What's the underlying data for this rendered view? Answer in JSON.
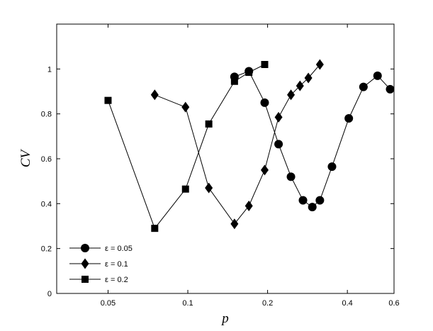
{
  "chart_data": {
    "type": "line",
    "title": "",
    "xlabel": "p",
    "ylabel": "CV",
    "x_scale": "log",
    "xlim": [
      0.032,
      0.6
    ],
    "ylim": [
      0,
      1.2
    ],
    "x_ticks": [
      0.05,
      0.1,
      0.2,
      0.4,
      0.6
    ],
    "x_tick_labels": [
      "0.05",
      "0.1",
      "0.2",
      "0.4",
      "0.6"
    ],
    "y_ticks": [
      0,
      0.2,
      0.4,
      0.6,
      0.8,
      1
    ],
    "y_tick_labels": [
      "0",
      "0.2",
      "0.4",
      "0.6",
      "0.8",
      "1"
    ],
    "grid": false,
    "legend_position": "bottom-left",
    "series": [
      {
        "name": "ε = 0.05",
        "marker": "circle",
        "points": [
          [
            0.15,
            0.965
          ],
          [
            0.17,
            0.99
          ],
          [
            0.195,
            0.85
          ],
          [
            0.22,
            0.665
          ],
          [
            0.245,
            0.52
          ],
          [
            0.272,
            0.415
          ],
          [
            0.295,
            0.385
          ],
          [
            0.315,
            0.415
          ],
          [
            0.35,
            0.565
          ],
          [
            0.405,
            0.78
          ],
          [
            0.46,
            0.92
          ],
          [
            0.52,
            0.97
          ],
          [
            0.58,
            0.91
          ]
        ]
      },
      {
        "name": "ε = 0.1",
        "marker": "diamond",
        "points": [
          [
            0.075,
            0.885
          ],
          [
            0.098,
            0.83
          ],
          [
            0.12,
            0.47
          ],
          [
            0.15,
            0.31
          ],
          [
            0.17,
            0.39
          ],
          [
            0.195,
            0.55
          ],
          [
            0.22,
            0.785
          ],
          [
            0.245,
            0.885
          ],
          [
            0.265,
            0.925
          ],
          [
            0.285,
            0.96
          ],
          [
            0.315,
            1.02
          ]
        ]
      },
      {
        "name": "ε = 0.2",
        "marker": "square",
        "points": [
          [
            0.05,
            0.86
          ],
          [
            0.075,
            0.29
          ],
          [
            0.098,
            0.465
          ],
          [
            0.12,
            0.755
          ],
          [
            0.15,
            0.945
          ],
          [
            0.17,
            0.985
          ],
          [
            0.195,
            1.02
          ]
        ]
      }
    ]
  }
}
